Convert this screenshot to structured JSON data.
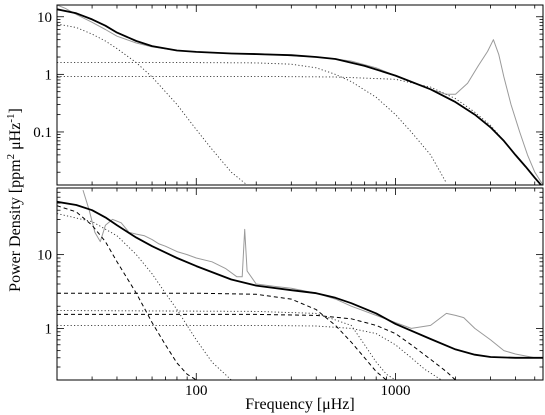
{
  "chart_data": [
    {
      "panel": "top",
      "type": "line",
      "xscale": "log",
      "yscale": "log",
      "xlim": [
        20,
        5500
      ],
      "ylim": [
        0.012,
        16
      ],
      "y_ticks": [
        {
          "value": 10,
          "label": "10"
        },
        {
          "value": 1,
          "label": "1"
        },
        {
          "value": 0.1,
          "label": "0.1"
        }
      ],
      "x_tick_labels_shown": false,
      "grid": false,
      "legend": "none",
      "series": [
        {
          "role": "observed-spectrum",
          "color": "#9a9a9a",
          "style": "solid",
          "x": [
            20,
            22,
            25,
            30,
            35,
            40,
            50,
            60,
            80,
            100,
            150,
            200,
            250,
            300,
            400,
            500,
            600,
            800,
            1000,
            1200,
            1500,
            1800,
            2000,
            2300,
            2600,
            2900,
            3100,
            3300,
            3500,
            3800,
            4200,
            4600,
            5000,
            5500
          ],
          "y": [
            16,
            14,
            11,
            8,
            6,
            4.6,
            3.5,
            3.0,
            2.6,
            2.45,
            2.3,
            2.3,
            2.2,
            2.1,
            2.0,
            1.85,
            1.7,
            1.3,
            0.95,
            0.75,
            0.55,
            0.45,
            0.45,
            0.7,
            1.4,
            2.5,
            4.0,
            2.2,
            0.9,
            0.3,
            0.1,
            0.04,
            0.02,
            0.012
          ]
        },
        {
          "role": "total-fit",
          "color": "#000000",
          "style": "solid-thick",
          "x": [
            20,
            25,
            30,
            35,
            40,
            50,
            60,
            80,
            100,
            150,
            200,
            300,
            400,
            500,
            700,
            1000,
            1500,
            2000,
            2500,
            3000,
            3500,
            4000,
            4500,
            5000,
            5500
          ],
          "y": [
            13.5,
            11.5,
            9.0,
            7.0,
            5.3,
            3.8,
            3.1,
            2.6,
            2.45,
            2.3,
            2.25,
            2.15,
            2.0,
            1.85,
            1.4,
            0.95,
            0.55,
            0.33,
            0.2,
            0.12,
            0.07,
            0.04,
            0.025,
            0.016,
            0.011
          ]
        },
        {
          "role": "component-1",
          "color": "#333333",
          "style": "dotted",
          "x": [
            20,
            25,
            30,
            35,
            40,
            50,
            60,
            80,
            100,
            120,
            150,
            180
          ],
          "y": [
            7.5,
            6.5,
            5.0,
            3.8,
            2.8,
            1.6,
            0.9,
            0.3,
            0.11,
            0.05,
            0.02,
            0.012
          ]
        },
        {
          "role": "component-2",
          "color": "#333333",
          "style": "dotted",
          "x": [
            20,
            100,
            200,
            300,
            400,
            500,
            600,
            800,
            1000,
            1200,
            1500,
            1800
          ],
          "y": [
            1.6,
            1.6,
            1.58,
            1.5,
            1.3,
            1.0,
            0.75,
            0.4,
            0.2,
            0.1,
            0.04,
            0.013
          ]
        },
        {
          "role": "component-3",
          "color": "#333333",
          "style": "dotted",
          "x": [
            20,
            200,
            500,
            1000,
            1500,
            2000,
            2500,
            3000,
            3500,
            4000,
            4500,
            5000,
            5500
          ],
          "y": [
            0.92,
            0.92,
            0.9,
            0.82,
            0.6,
            0.38,
            0.22,
            0.13,
            0.07,
            0.04,
            0.025,
            0.016,
            0.011
          ]
        }
      ]
    },
    {
      "panel": "bottom",
      "type": "line",
      "xscale": "log",
      "yscale": "log",
      "xlim": [
        20,
        5500
      ],
      "ylim": [
        0.2,
        80
      ],
      "y_ticks": [
        {
          "value": 10,
          "label": "10"
        },
        {
          "value": 1,
          "label": "1"
        }
      ],
      "x_ticks": [
        {
          "value": 100,
          "label": "100"
        },
        {
          "value": 1000,
          "label": "1000"
        }
      ],
      "grid": false,
      "legend": "none",
      "series": [
        {
          "role": "observed-spectrum",
          "color": "#9a9a9a",
          "style": "solid",
          "x": [
            27,
            29,
            31,
            33,
            35,
            38,
            42,
            46,
            50,
            55,
            60,
            65,
            70,
            80,
            90,
            100,
            120,
            140,
            160,
            170,
            175,
            180,
            200,
            250,
            300,
            400,
            500,
            600,
            800,
            1000,
            1200,
            1500,
            1800,
            2000,
            2200,
            2500,
            3000,
            3500,
            4000,
            5000,
            5500
          ],
          "y": [
            75,
            40,
            20,
            15,
            25,
            30,
            27,
            20,
            19,
            18,
            16,
            14,
            13,
            11,
            10,
            9,
            8,
            6.5,
            5,
            5,
            22,
            6,
            4,
            3.7,
            3.5,
            3.0,
            2.5,
            2.0,
            1.5,
            1.2,
            1.0,
            1.1,
            1.6,
            1.5,
            1.4,
            1.0,
            0.7,
            0.5,
            0.45,
            0.4,
            0.4
          ]
        },
        {
          "role": "total-fit",
          "color": "#000000",
          "style": "solid-thick",
          "x": [
            20,
            25,
            30,
            35,
            40,
            50,
            60,
            80,
            100,
            150,
            200,
            300,
            400,
            500,
            600,
            800,
            1000,
            1500,
            2000,
            2500,
            3000,
            4000,
            5000,
            5500
          ],
          "y": [
            52,
            47,
            40,
            32,
            25,
            17,
            13,
            9,
            7,
            4.6,
            3.8,
            3.3,
            3.0,
            2.6,
            2.2,
            1.6,
            1.15,
            0.72,
            0.52,
            0.44,
            0.41,
            0.4,
            0.4,
            0.4
          ]
        },
        {
          "role": "component-1",
          "color": "#000000",
          "style": "dashed",
          "x": [
            20,
            25,
            30,
            35,
            40,
            50,
            60,
            70,
            80,
            90,
            100,
            110
          ],
          "y": [
            46,
            38,
            25,
            15,
            8,
            3.0,
            1.2,
            0.6,
            0.34,
            0.24,
            0.2,
            0.19
          ]
        },
        {
          "role": "component-2",
          "color": "#000000",
          "style": "dashed",
          "x": [
            20,
            100,
            200,
            300,
            400,
            500,
            600,
            700,
            800,
            900
          ],
          "y": [
            3.0,
            3.0,
            2.9,
            2.5,
            1.8,
            1.1,
            0.65,
            0.4,
            0.26,
            0.2
          ]
        },
        {
          "role": "component-3",
          "color": "#000000",
          "style": "dashed",
          "x": [
            20,
            200,
            400,
            600,
            800,
            1000,
            1200,
            1500,
            1800,
            2000
          ],
          "y": [
            1.55,
            1.55,
            1.5,
            1.35,
            1.1,
            0.85,
            0.6,
            0.38,
            0.26,
            0.2
          ]
        },
        {
          "role": "component-4",
          "color": "#333333",
          "style": "dotted",
          "x": [
            20,
            30,
            40,
            50,
            60,
            70,
            80,
            100,
            120,
            150,
            180
          ],
          "y": [
            36,
            28,
            18,
            10,
            5.5,
            3.0,
            1.8,
            0.7,
            0.35,
            0.2,
            0.2
          ]
        },
        {
          "role": "component-5",
          "color": "#333333",
          "style": "dotted",
          "x": [
            20,
            200,
            400,
            600,
            700,
            800,
            900,
            1000
          ],
          "y": [
            1.75,
            1.7,
            1.6,
            1.1,
            0.6,
            0.35,
            0.24,
            0.2
          ]
        },
        {
          "role": "component-6",
          "color": "#333333",
          "style": "dotted",
          "x": [
            20,
            200,
            400,
            600,
            800,
            1000,
            1200,
            1400,
            1700
          ],
          "y": [
            1.1,
            1.1,
            1.08,
            1.0,
            0.85,
            0.6,
            0.4,
            0.28,
            0.2
          ]
        }
      ]
    }
  ],
  "xlabel": "Frequency [μHz]",
  "ylabel_parts": {
    "main": "Power Density [ppm",
    "sup1": "2",
    "mid": " μHz",
    "sup2": "-1",
    "end": "]"
  }
}
